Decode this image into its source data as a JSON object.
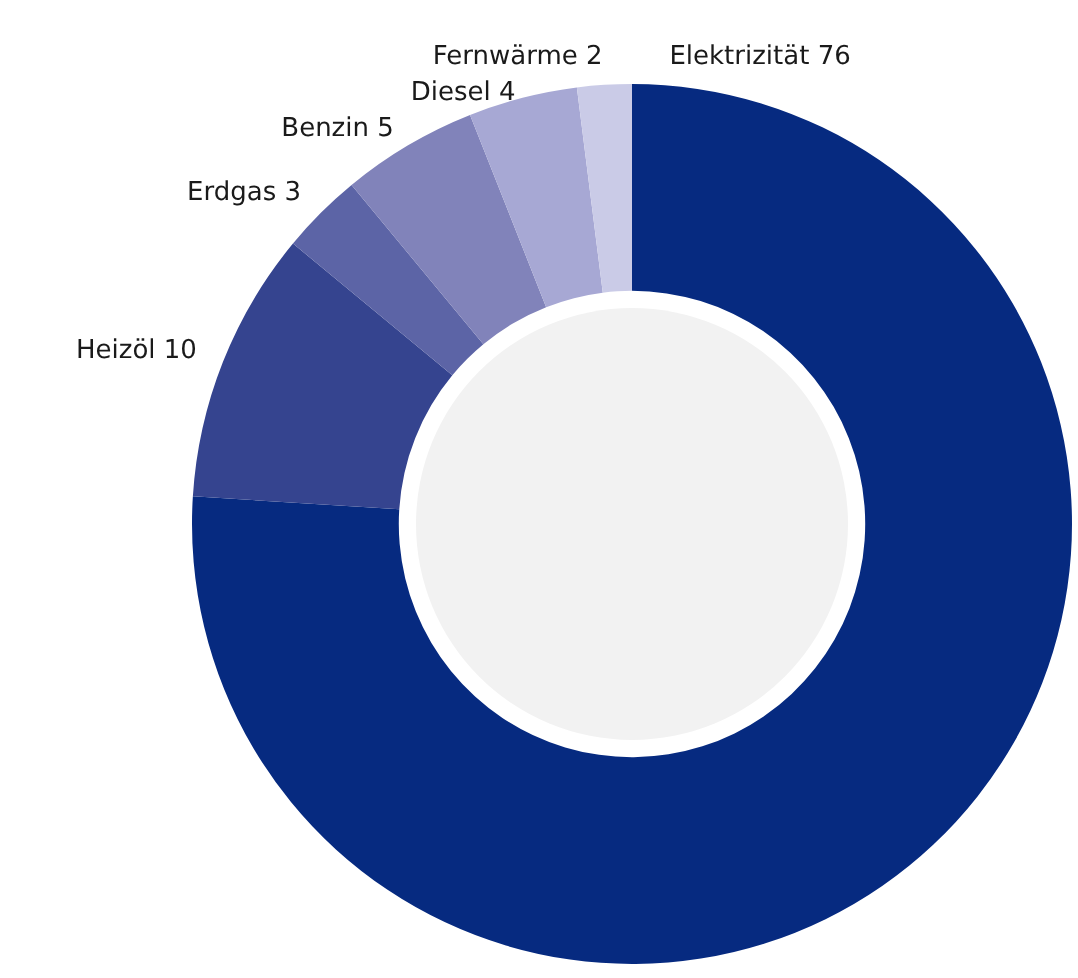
{
  "chart_data": {
    "type": "donut",
    "categories": [
      "Elektrizität",
      "Heizöl",
      "Erdgas",
      "Benzin",
      "Diesel",
      "Fernwärme"
    ],
    "values": [
      76,
      10,
      3,
      5,
      4,
      2
    ],
    "colors": [
      "#062a80",
      "#35448f",
      "#5c64a6",
      "#8183ba",
      "#a7a8d4",
      "#cacbe7"
    ],
    "data_labels": true,
    "legend": false
  }
}
